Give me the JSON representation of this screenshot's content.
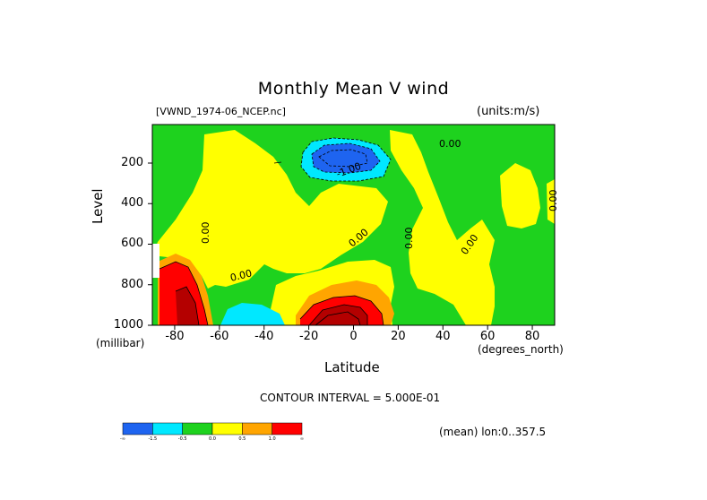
{
  "header": {
    "title": "Monthly Mean V wind",
    "file": "[VWND_1974-06_NCEP.nc]",
    "units": "(units:m/s)"
  },
  "footer": {
    "contour_interval": "CONTOUR INTERVAL = 5.000E-01",
    "mean": "(mean) lon:0..357.5"
  },
  "colors": {
    "levels": [
      "#1e64f0",
      "#00e8ff",
      "#1ed21e",
      "#ffff00",
      "#ffa500",
      "#ff0000"
    ],
    "dark_red": "#b40000"
  },
  "chart_data": {
    "type": "heatmap",
    "title": "Monthly Mean V wind",
    "xlabel": "Latitude",
    "ylabel": "Level",
    "x_unit": "(degrees_north)",
    "y_unit": "(millibar)",
    "xlim": [
      -90,
      90
    ],
    "ylim": [
      1000,
      10
    ],
    "x_ticks": [
      -80,
      -60,
      -40,
      -20,
      0,
      20,
      40,
      60,
      80
    ],
    "x_tick_labels": [
      "-80",
      "-60",
      "-40",
      "-20",
      "0",
      "20",
      "40",
      "60",
      "80"
    ],
    "y_ticks": [
      200,
      400,
      600,
      800,
      1000
    ],
    "contour_labels": [
      "0.00",
      "0.00",
      "-1.00",
      "0.00",
      "0.00",
      "0.00",
      "0.00",
      "0.00",
      "0.00"
    ],
    "colorbar": {
      "labels": [
        "-∞",
        "-1.5",
        "-0.5",
        "0.0",
        "0.5",
        "1.0",
        "∞"
      ]
    }
  }
}
